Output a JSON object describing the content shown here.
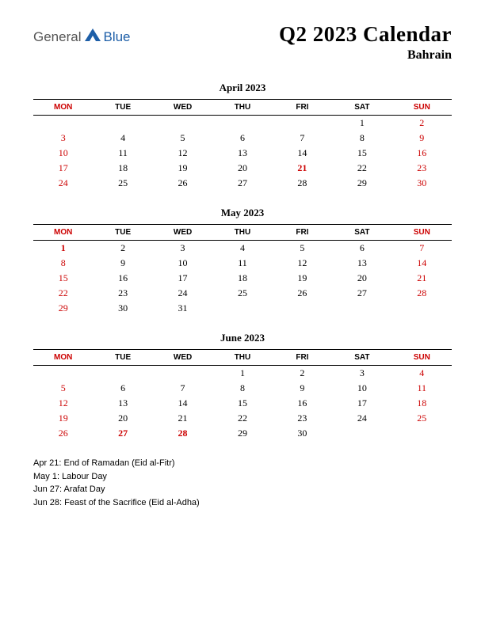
{
  "logo": {
    "part1": "General",
    "part2": "Blue",
    "shape_color": "#1e5fa8"
  },
  "title": "Q2 2023 Calendar",
  "subtitle": "Bahrain",
  "day_headers": [
    "MON",
    "TUE",
    "WED",
    "THU",
    "FRI",
    "SAT",
    "SUN"
  ],
  "header_red_cols": [
    0,
    6
  ],
  "colors": {
    "text": "#000000",
    "red": "#cc0000",
    "rule": "#000000",
    "background": "#ffffff"
  },
  "typography": {
    "title_fontsize": 27,
    "subtitle_fontsize": 16,
    "month_title_fontsize": 13,
    "header_fontsize": 10,
    "cell_fontsize": 12,
    "holiday_fontsize": 11
  },
  "months": [
    {
      "title": "April 2023",
      "weeks": [
        [
          null,
          null,
          null,
          null,
          null,
          {
            "n": 1
          },
          {
            "n": 2,
            "red": true
          }
        ],
        [
          {
            "n": 3,
            "red": true
          },
          {
            "n": 4
          },
          {
            "n": 5
          },
          {
            "n": 6
          },
          {
            "n": 7
          },
          {
            "n": 8
          },
          {
            "n": 9,
            "red": true
          }
        ],
        [
          {
            "n": 10,
            "red": true
          },
          {
            "n": 11
          },
          {
            "n": 12
          },
          {
            "n": 13
          },
          {
            "n": 14
          },
          {
            "n": 15
          },
          {
            "n": 16,
            "red": true
          }
        ],
        [
          {
            "n": 17,
            "red": true
          },
          {
            "n": 18
          },
          {
            "n": 19
          },
          {
            "n": 20
          },
          {
            "n": 21,
            "red": true,
            "bold": true
          },
          {
            "n": 22
          },
          {
            "n": 23,
            "red": true
          }
        ],
        [
          {
            "n": 24,
            "red": true
          },
          {
            "n": 25
          },
          {
            "n": 26
          },
          {
            "n": 27
          },
          {
            "n": 28
          },
          {
            "n": 29
          },
          {
            "n": 30,
            "red": true
          }
        ]
      ]
    },
    {
      "title": "May 2023",
      "weeks": [
        [
          {
            "n": 1,
            "red": true,
            "bold": true
          },
          {
            "n": 2
          },
          {
            "n": 3
          },
          {
            "n": 4
          },
          {
            "n": 5
          },
          {
            "n": 6
          },
          {
            "n": 7,
            "red": true
          }
        ],
        [
          {
            "n": 8,
            "red": true
          },
          {
            "n": 9
          },
          {
            "n": 10
          },
          {
            "n": 11
          },
          {
            "n": 12
          },
          {
            "n": 13
          },
          {
            "n": 14,
            "red": true
          }
        ],
        [
          {
            "n": 15,
            "red": true
          },
          {
            "n": 16
          },
          {
            "n": 17
          },
          {
            "n": 18
          },
          {
            "n": 19
          },
          {
            "n": 20
          },
          {
            "n": 21,
            "red": true
          }
        ],
        [
          {
            "n": 22,
            "red": true
          },
          {
            "n": 23
          },
          {
            "n": 24
          },
          {
            "n": 25
          },
          {
            "n": 26
          },
          {
            "n": 27
          },
          {
            "n": 28,
            "red": true
          }
        ],
        [
          {
            "n": 29,
            "red": true
          },
          {
            "n": 30
          },
          {
            "n": 31
          },
          null,
          null,
          null,
          null
        ]
      ]
    },
    {
      "title": "June 2023",
      "weeks": [
        [
          null,
          null,
          null,
          {
            "n": 1
          },
          {
            "n": 2
          },
          {
            "n": 3
          },
          {
            "n": 4,
            "red": true
          }
        ],
        [
          {
            "n": 5,
            "red": true
          },
          {
            "n": 6
          },
          {
            "n": 7
          },
          {
            "n": 8
          },
          {
            "n": 9
          },
          {
            "n": 10
          },
          {
            "n": 11,
            "red": true
          }
        ],
        [
          {
            "n": 12,
            "red": true
          },
          {
            "n": 13
          },
          {
            "n": 14
          },
          {
            "n": 15
          },
          {
            "n": 16
          },
          {
            "n": 17
          },
          {
            "n": 18,
            "red": true
          }
        ],
        [
          {
            "n": 19,
            "red": true
          },
          {
            "n": 20
          },
          {
            "n": 21
          },
          {
            "n": 22
          },
          {
            "n": 23
          },
          {
            "n": 24
          },
          {
            "n": 25,
            "red": true
          }
        ],
        [
          {
            "n": 26,
            "red": true
          },
          {
            "n": 27,
            "red": true,
            "bold": true
          },
          {
            "n": 28,
            "red": true,
            "bold": true
          },
          {
            "n": 29
          },
          {
            "n": 30
          },
          null,
          null
        ]
      ]
    }
  ],
  "holidays": [
    "Apr 21: End of Ramadan (Eid al-Fitr)",
    "May 1: Labour Day",
    "Jun 27: Arafat Day",
    "Jun 28: Feast of the Sacrifice (Eid al-Adha)"
  ]
}
